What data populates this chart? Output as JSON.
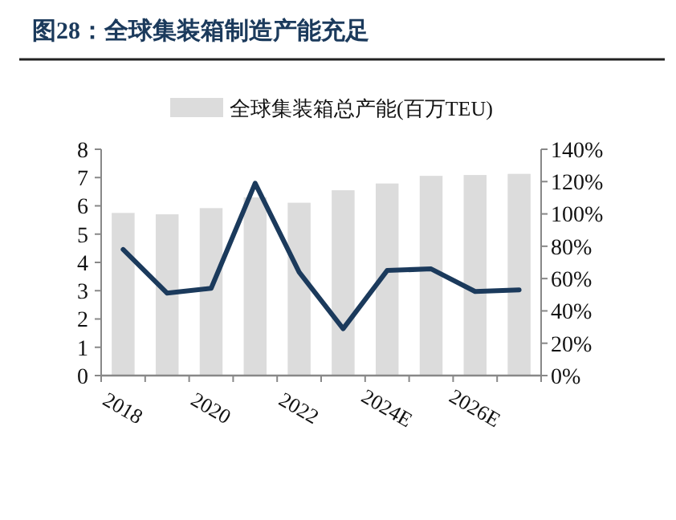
{
  "chart_data": {
    "type": "bar",
    "title": "图28：全球集装箱制造产能充足",
    "categories": [
      "2018",
      null,
      "2020",
      null,
      "2022",
      null,
      "2024E",
      null,
      "2026E",
      null
    ],
    "series": [
      {
        "name": "全球集装箱总产能(百万TEU)",
        "color": "#dcdcdc",
        "values": [
          5.75,
          5.7,
          5.92,
          6.3,
          6.11,
          6.55,
          6.79,
          7.06,
          7.09,
          7.13
        ]
      },
      {
        "type": "line",
        "axis": "y2",
        "color": "#1b3a5c",
        "values": [
          78,
          51,
          54,
          119,
          64,
          29,
          65,
          66,
          52,
          53
        ]
      }
    ],
    "ylim": [
      0,
      8
    ],
    "yticks": [
      0,
      1,
      2,
      3,
      4,
      5,
      6,
      7,
      8
    ],
    "y2lim": [
      0,
      140
    ],
    "y2ticks": [
      {
        "value": 0,
        "label": "0%"
      },
      {
        "value": 20,
        "label": "20%"
      },
      {
        "value": 40,
        "label": "40%"
      },
      {
        "value": 60,
        "label": "60%"
      },
      {
        "value": 80,
        "label": "80%"
      },
      {
        "value": 100,
        "label": "100%"
      },
      {
        "value": 120,
        "label": "120%"
      },
      {
        "value": 140,
        "label": "140%"
      }
    ],
    "legend": "top"
  }
}
